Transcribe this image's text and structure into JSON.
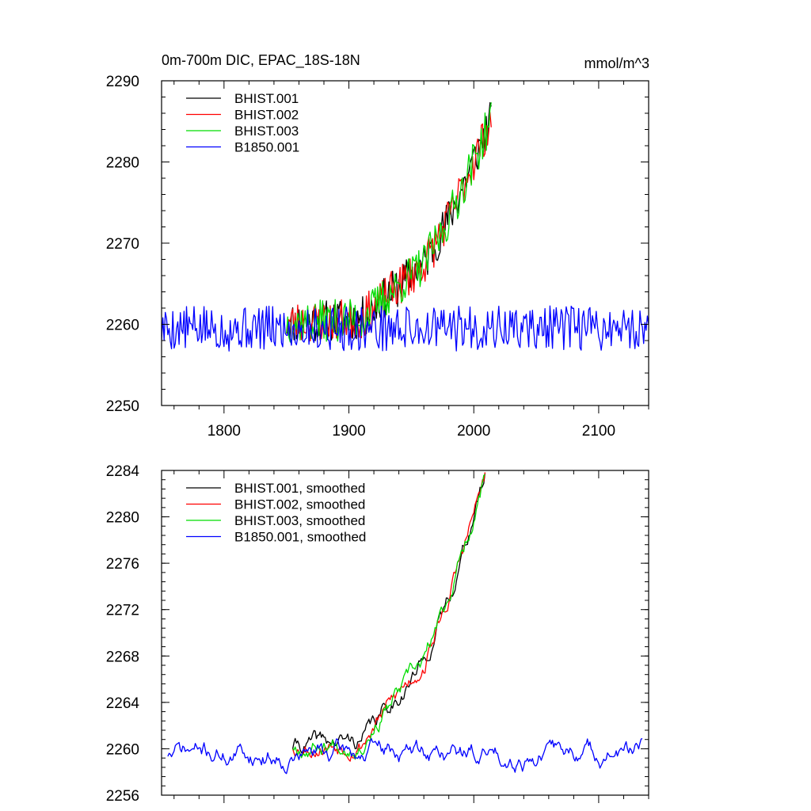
{
  "chart_data": [
    {
      "type": "line",
      "title": "0m-700m DIC, EPAC_18S-18N",
      "units": "mmol/m^3",
      "xlim": [
        1750,
        2140
      ],
      "ylim": [
        2250,
        2290
      ],
      "xticks": [
        1800,
        1900,
        2000,
        2100
      ],
      "xtick_labels": [
        "1800",
        "1900",
        "2000",
        "2100"
      ],
      "yticks": [
        2250,
        2260,
        2270,
        2280,
        2290
      ],
      "ytick_labels": [
        "2250",
        "2260",
        "2270",
        "2280",
        "2290"
      ],
      "legend_position": "top-left",
      "series": [
        {
          "name": "BHIST.001",
          "color": "#000000",
          "x_range": [
            1850,
            2014
          ],
          "trend": "hist",
          "noise": 2.6,
          "seed": 11
        },
        {
          "name": "BHIST.002",
          "color": "#ff0000",
          "x_range": [
            1850,
            2014
          ],
          "trend": "hist",
          "noise": 2.6,
          "seed": 23
        },
        {
          "name": "BHIST.003",
          "color": "#00dd00",
          "x_range": [
            1850,
            2014
          ],
          "trend": "hist",
          "noise": 2.6,
          "seed": 37
        },
        {
          "name": "B1850.001",
          "color": "#0000ff",
          "x_range": [
            1750,
            2140
          ],
          "trend": "flat",
          "base": 2259.5,
          "noise": 2.8,
          "seed": 5
        }
      ]
    },
    {
      "type": "line",
      "title": "",
      "units": "",
      "xlim": [
        1750,
        2140
      ],
      "ylim": [
        2256,
        2284
      ],
      "xticks": [
        1800,
        1900,
        2000,
        2100
      ],
      "xtick_labels": [],
      "yticks": [
        2256,
        2260,
        2264,
        2268,
        2272,
        2276,
        2280,
        2284
      ],
      "ytick_labels": [
        "2256",
        "2260",
        "2264",
        "2268",
        "2272",
        "2276",
        "2280",
        "2284"
      ],
      "legend_position": "top-left",
      "series": [
        {
          "name": "BHIST.001, smoothed",
          "color": "#000000",
          "x_range": [
            1855,
            2009
          ],
          "trend": "hist_smooth",
          "noise": 0.5,
          "seed": 41
        },
        {
          "name": "BHIST.002, smoothed",
          "color": "#ff0000",
          "x_range": [
            1855,
            2009
          ],
          "trend": "hist_smooth",
          "noise": 0.5,
          "seed": 53
        },
        {
          "name": "BHIST.003, smoothed",
          "color": "#00dd00",
          "x_range": [
            1855,
            2009
          ],
          "trend": "hist_smooth",
          "noise": 0.5,
          "seed": 67
        },
        {
          "name": "B1850.001, smoothed",
          "color": "#0000ff",
          "x_range": [
            1755,
            2135
          ],
          "trend": "flat_smooth",
          "base": 2259.6,
          "noise": 0.9,
          "seed": 71
        }
      ]
    }
  ]
}
